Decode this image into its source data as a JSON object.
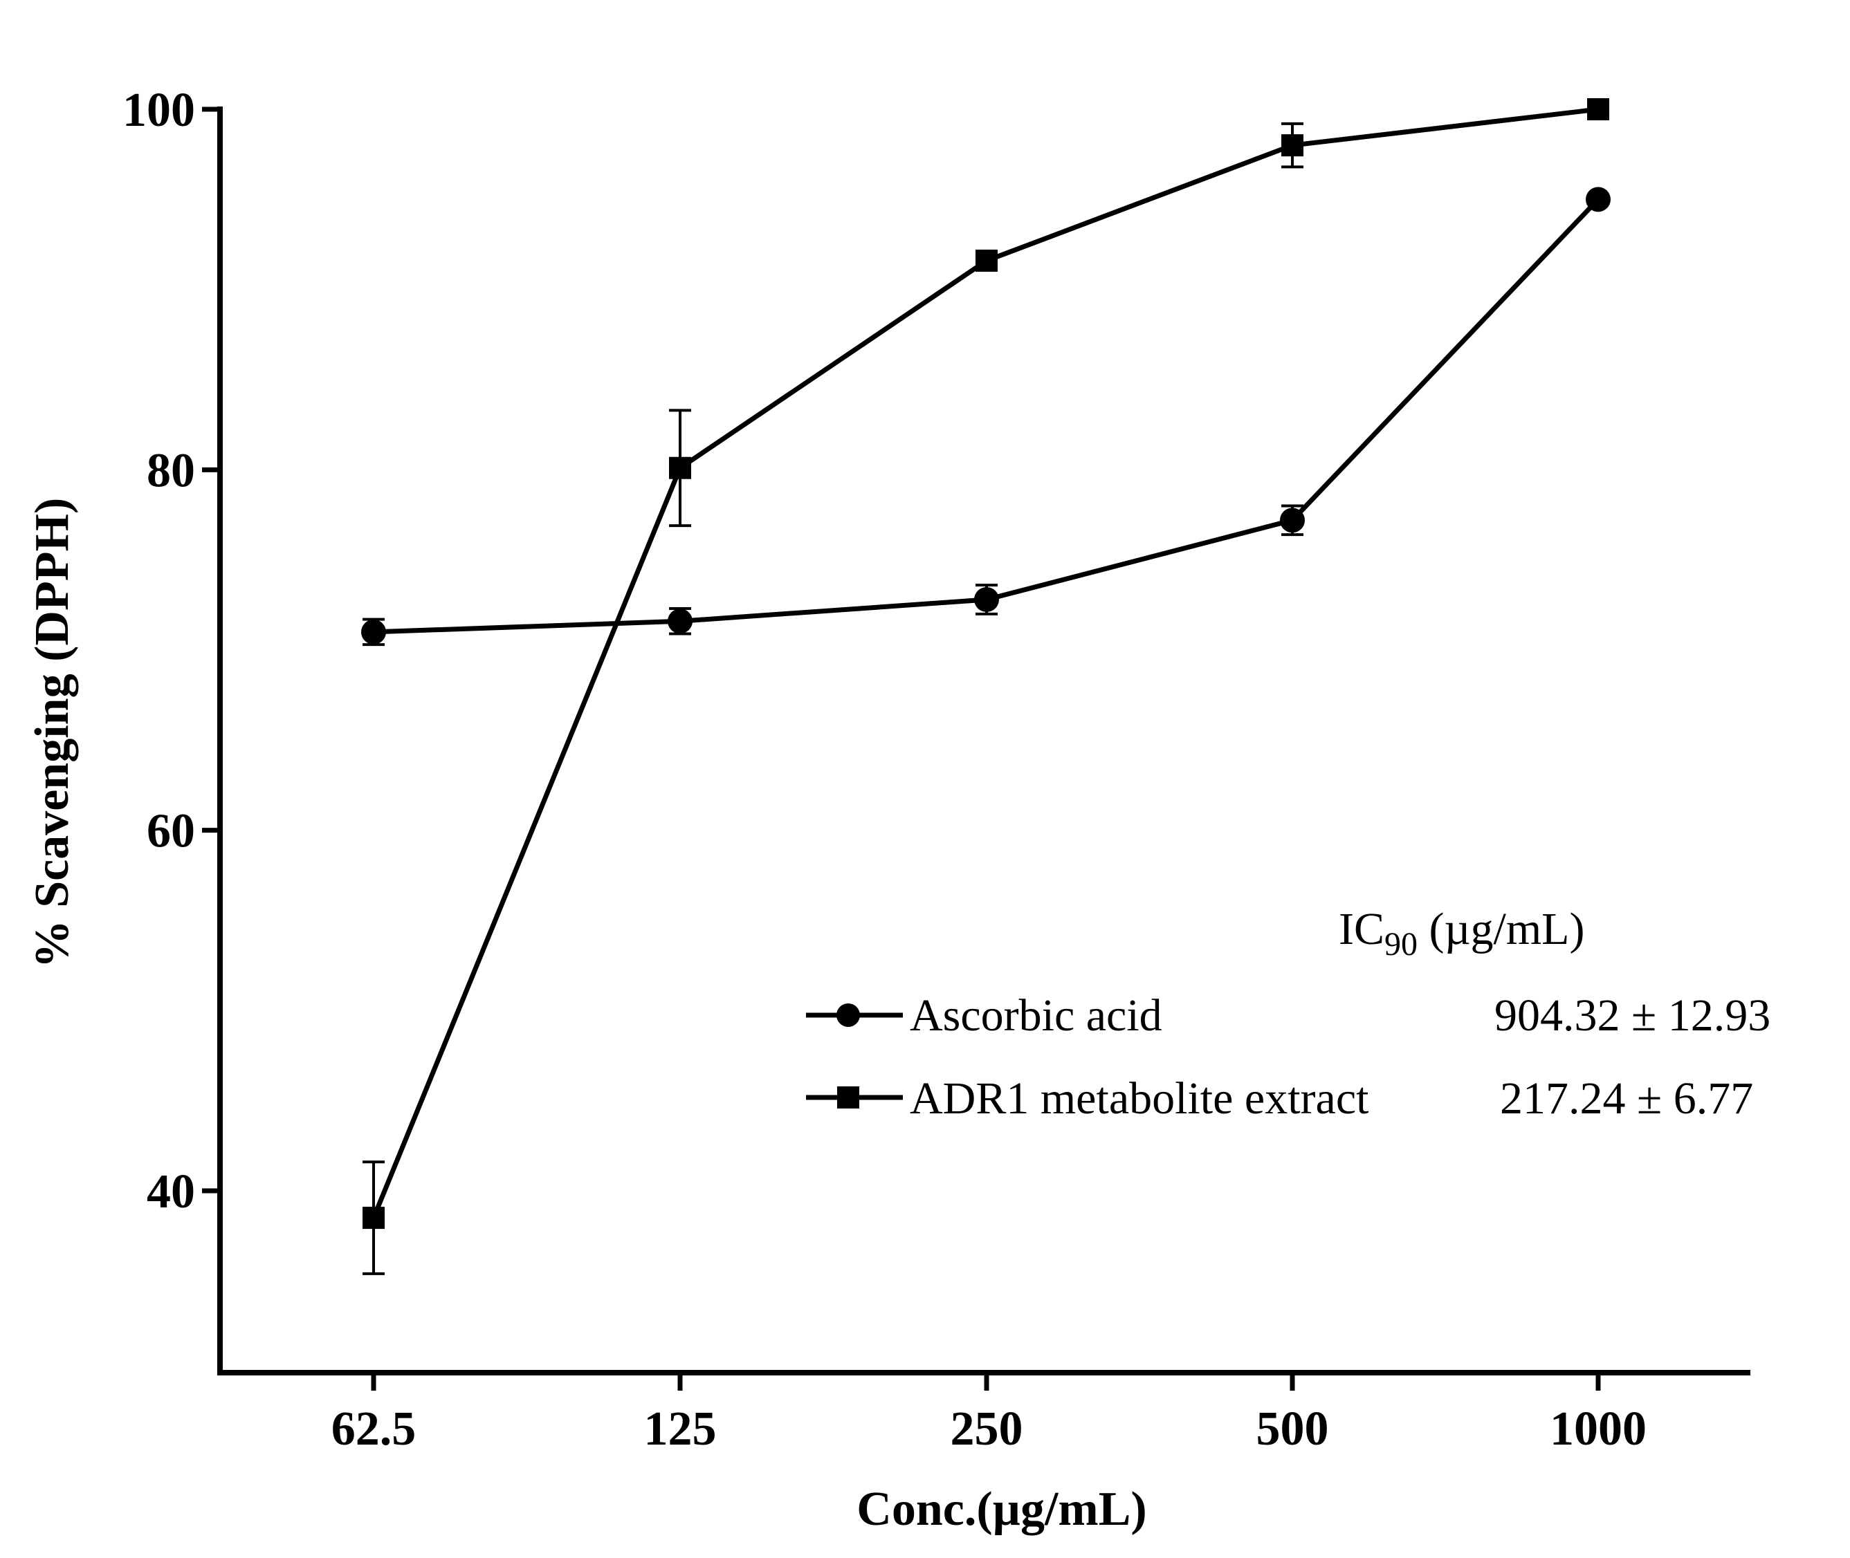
{
  "chart_data": {
    "type": "line",
    "title": "",
    "xlabel": "Conc.(µg/mL)",
    "ylabel": "% Scavenging (DPPH)",
    "categories": [
      "62.5",
      "125",
      "250",
      "500",
      "1000"
    ],
    "yticks": [
      "40",
      "60",
      "80",
      "100"
    ],
    "ylim": [
      33,
      100
    ],
    "grid": false,
    "legend": {
      "placement": "bottom-right",
      "header_main": "IC",
      "header_sub": "90",
      "header_unit": " (µg/mL)"
    },
    "series": [
      {
        "name": "Ascorbic acid",
        "marker": "circle",
        "ic90": "904.32 ± 12.93",
        "values": [
          71.0,
          71.6,
          72.8,
          77.2,
          95.0
        ],
        "errors": [
          0.7,
          0.7,
          0.8,
          0.8,
          0.0
        ]
      },
      {
        "name": "ADR1 metabolite extract",
        "marker": "square",
        "ic90": "217.24 ± 6.77",
        "values": [
          38.5,
          80.1,
          91.6,
          98.0,
          100.0
        ],
        "errors": [
          3.1,
          3.2,
          0.0,
          1.2,
          0.0
        ]
      }
    ]
  }
}
